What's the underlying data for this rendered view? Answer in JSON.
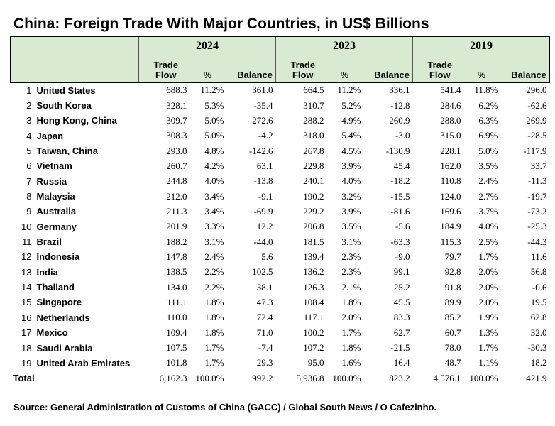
{
  "title": "China: Foreign Trade With Major Countries, in US$ Billions",
  "years": [
    "2024",
    "2023",
    "2019"
  ],
  "columns": {
    "trade_flow_line1": "Trade",
    "trade_flow_line2": "Flow",
    "pct": "%",
    "balance": "Balance"
  },
  "rows": [
    {
      "rank": "1",
      "country": "United States",
      "y2024": [
        "688.3",
        "11.2%",
        "361.0"
      ],
      "y2023": [
        "664.5",
        "11.2%",
        "336.1"
      ],
      "y2019": [
        "541.4",
        "11.8%",
        "296.0"
      ]
    },
    {
      "rank": "2",
      "country": "South Korea",
      "y2024": [
        "328.1",
        "5.3%",
        "-35.4"
      ],
      "y2023": [
        "310.7",
        "5.2%",
        "-12.8"
      ],
      "y2019": [
        "284.6",
        "6.2%",
        "-62.6"
      ]
    },
    {
      "rank": "3",
      "country": "Hong Kong, China",
      "y2024": [
        "309.7",
        "5.0%",
        "272.6"
      ],
      "y2023": [
        "288.2",
        "4.9%",
        "260.9"
      ],
      "y2019": [
        "288.0",
        "6.3%",
        "269.9"
      ]
    },
    {
      "rank": "4",
      "country": "Japan",
      "y2024": [
        "308.3",
        "5.0%",
        "-4.2"
      ],
      "y2023": [
        "318.0",
        "5.4%",
        "-3.0"
      ],
      "y2019": [
        "315.0",
        "6.9%",
        "-28.5"
      ]
    },
    {
      "rank": "5",
      "country": "Taiwan, China",
      "y2024": [
        "293.0",
        "4.8%",
        "-142.6"
      ],
      "y2023": [
        "267.8",
        "4.5%",
        "-130.9"
      ],
      "y2019": [
        "228.1",
        "5.0%",
        "-117.9"
      ]
    },
    {
      "rank": "6",
      "country": "Vietnam",
      "y2024": [
        "260.7",
        "4.2%",
        "63.1"
      ],
      "y2023": [
        "229.8",
        "3.9%",
        "45.4"
      ],
      "y2019": [
        "162.0",
        "3.5%",
        "33.7"
      ]
    },
    {
      "rank": "7",
      "country": "Russia",
      "y2024": [
        "244.8",
        "4.0%",
        "-13.8"
      ],
      "y2023": [
        "240.1",
        "4.0%",
        "-18.2"
      ],
      "y2019": [
        "110.8",
        "2.4%",
        "-11.3"
      ]
    },
    {
      "rank": "8",
      "country": "Malaysia",
      "y2024": [
        "212.0",
        "3.4%",
        "-9.1"
      ],
      "y2023": [
        "190.2",
        "3.2%",
        "-15.5"
      ],
      "y2019": [
        "124.0",
        "2.7%",
        "-19.7"
      ]
    },
    {
      "rank": "9",
      "country": "Australia",
      "y2024": [
        "211.3",
        "3.4%",
        "-69.9"
      ],
      "y2023": [
        "229.2",
        "3.9%",
        "-81.6"
      ],
      "y2019": [
        "169.6",
        "3.7%",
        "-73.2"
      ]
    },
    {
      "rank": "10",
      "country": "Germany",
      "y2024": [
        "201.9",
        "3.3%",
        "12.2"
      ],
      "y2023": [
        "206.8",
        "3.5%",
        "-5.6"
      ],
      "y2019": [
        "184.9",
        "4.0%",
        "-25.3"
      ]
    },
    {
      "rank": "11",
      "country": "Brazil",
      "y2024": [
        "188.2",
        "3.1%",
        "-44.0"
      ],
      "y2023": [
        "181.5",
        "3.1%",
        "-63.3"
      ],
      "y2019": [
        "115.3",
        "2.5%",
        "-44.3"
      ]
    },
    {
      "rank": "12",
      "country": "Indonesia",
      "y2024": [
        "147.8",
        "2.4%",
        "5.6"
      ],
      "y2023": [
        "139.4",
        "2.3%",
        "-9.0"
      ],
      "y2019": [
        "79.7",
        "1.7%",
        "11.6"
      ]
    },
    {
      "rank": "13",
      "country": "India",
      "y2024": [
        "138.5",
        "2.2%",
        "102.5"
      ],
      "y2023": [
        "136.2",
        "2.3%",
        "99.1"
      ],
      "y2019": [
        "92.8",
        "2.0%",
        "56.8"
      ]
    },
    {
      "rank": "14",
      "country": "Thailand",
      "y2024": [
        "134.0",
        "2.2%",
        "38.1"
      ],
      "y2023": [
        "126.3",
        "2.1%",
        "25.2"
      ],
      "y2019": [
        "91.8",
        "2.0%",
        "-0.6"
      ]
    },
    {
      "rank": "15",
      "country": "Singapore",
      "y2024": [
        "111.1",
        "1.8%",
        "47.3"
      ],
      "y2023": [
        "108.4",
        "1.8%",
        "45.5"
      ],
      "y2019": [
        "89.9",
        "2.0%",
        "19.5"
      ]
    },
    {
      "rank": "16",
      "country": "Netherlands",
      "y2024": [
        "110.0",
        "1.8%",
        "72.4"
      ],
      "y2023": [
        "117.1",
        "2.0%",
        "83.3"
      ],
      "y2019": [
        "85.2",
        "1.9%",
        "62.8"
      ]
    },
    {
      "rank": "17",
      "country": "Mexico",
      "y2024": [
        "109.4",
        "1.8%",
        "71.0"
      ],
      "y2023": [
        "100.2",
        "1.7%",
        "62.7"
      ],
      "y2019": [
        "60.7",
        "1.3%",
        "32.0"
      ]
    },
    {
      "rank": "18",
      "country": "Saudi Arabia",
      "y2024": [
        "107.5",
        "1.7%",
        "-7.4"
      ],
      "y2023": [
        "107.2",
        "1.8%",
        "-21.5"
      ],
      "y2019": [
        "78.0",
        "1.7%",
        "-30.3"
      ]
    },
    {
      "rank": "19",
      "country": "United Arab Emirates",
      "y2024": [
        "101.8",
        "1.7%",
        "29.3"
      ],
      "y2023": [
        "95.0",
        "1.6%",
        "16.4"
      ],
      "y2019": [
        "48.7",
        "1.1%",
        "18.2"
      ]
    }
  ],
  "total": {
    "label": "Total",
    "y2024": [
      "6,162.3",
      "100.0%",
      "992.2"
    ],
    "y2023": [
      "5,936.8",
      "100.0%",
      "823.2"
    ],
    "y2019": [
      "4,576.1",
      "100.0%",
      "421.9"
    ]
  },
  "source": "Source: General Administration of Customs of China (GACC) / Global South News / O Cafezinho.",
  "colors": {
    "header_background": "#d9ead3"
  }
}
